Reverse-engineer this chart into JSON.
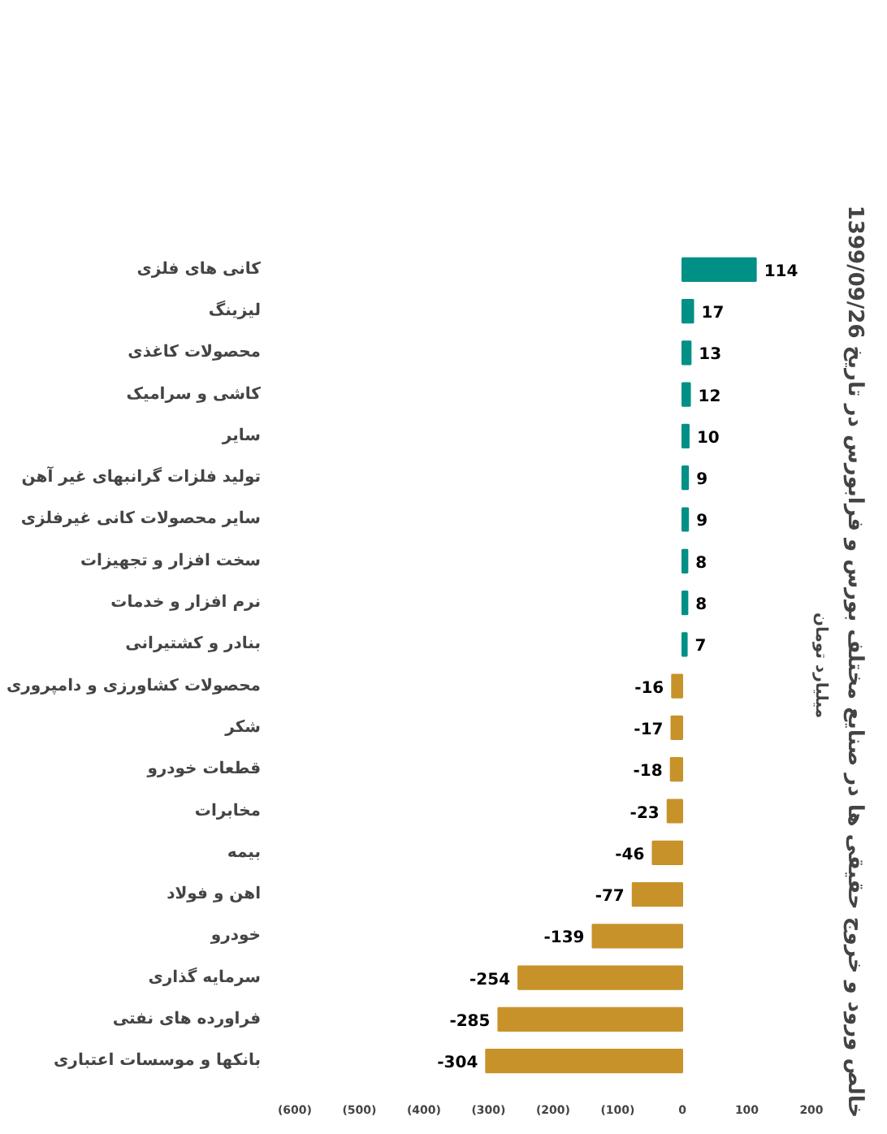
{
  "chart_data": {
    "type": "bar",
    "orientation": "horizontal",
    "title": "خالص ورود و خروج حقیقی ها در صنایع مختلف  بورس و فرابورس در تاریخ 1399/09/26",
    "y2label": "میلیارد تومان",
    "categories": [
      "کانی های فلزی",
      "لیزینگ",
      "محصولات کاغذی",
      "کاشی و سرامیک",
      "سایر",
      "تولید فلزات گرانبهای غیر آهن",
      "سایر محصولات کانی غیرفلزی",
      "سخت افزار و تجهیزات",
      "نرم افزار و خدمات",
      "بنادر و کشتیرانی",
      "محصولات کشاورزی و دامپروری",
      "شکر",
      "قطعات خودرو",
      "مخابرات",
      "بیمه",
      "اهن و فولاد",
      "خودرو",
      "سرمایه گذاری",
      "فراورده های نفتی",
      "بانکها و موسسات اعتباری"
    ],
    "values": [
      114,
      17,
      13,
      12,
      10,
      9,
      9,
      8,
      8,
      7,
      -16,
      -17,
      -18,
      -23,
      -46,
      -77,
      -139,
      -254,
      -285,
      -304
    ],
    "colors": [
      "#009086",
      "#009086",
      "#009086",
      "#009086",
      "#009086",
      "#009086",
      "#009086",
      "#009086",
      "#009086",
      "#009086",
      "#c8922a",
      "#c8922a",
      "#c8922a",
      "#c8922a",
      "#c8922a",
      "#c8922a",
      "#c8922a",
      "#c8922a",
      "#c8922a",
      "#c8922a"
    ],
    "xlim": [
      -600,
      200
    ],
    "xticks": [
      {
        "value": -600,
        "label": "(600)"
      },
      {
        "value": -500,
        "label": "(500)"
      },
      {
        "value": -400,
        "label": "(400)"
      },
      {
        "value": -300,
        "label": "(300)"
      },
      {
        "value": -200,
        "label": "(200)"
      },
      {
        "value": -100,
        "label": "(100)"
      },
      0,
      100,
      200
    ],
    "data_labels": true,
    "grid": false
  }
}
